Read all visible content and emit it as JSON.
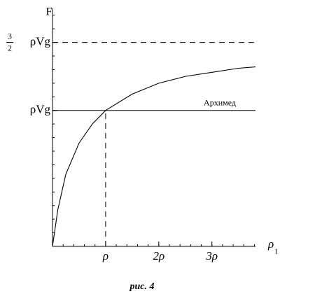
{
  "chart_data": {
    "type": "line",
    "ylabel": "F",
    "xlabel": {
      "text": "ρ",
      "subscript": "1"
    },
    "caption": "рис. 4",
    "x": [
      0,
      0.1,
      0.25,
      0.5,
      0.75,
      1,
      1.5,
      2,
      2.5,
      3,
      3.5,
      3.82
    ],
    "series": [
      {
        "color": "#000000",
        "values": [
          0,
          0.27,
          0.53,
          0.76,
          0.9,
          1,
          1.12,
          1.2,
          1.25,
          1.28,
          1.31,
          1.32
        ]
      }
    ],
    "xlim": [
      0,
      3.82
    ],
    "ylim": [
      0,
      1.75
    ],
    "xticks": [
      {
        "value": 1,
        "label": "ρ"
      },
      {
        "value": 2,
        "label": "2ρ"
      },
      {
        "value": 3,
        "label": "3ρ"
      }
    ],
    "yticks": [
      {
        "value": 1,
        "label": "ρVg"
      },
      {
        "value": 1.5,
        "label": "ρVg",
        "fraction": [
          "3",
          "2"
        ]
      }
    ],
    "xminor": 0.2,
    "yminor": 0.1,
    "hlines": [
      {
        "y": 1.5,
        "dashed": true
      },
      {
        "y": 1,
        "dashed": false,
        "label": "Архимед"
      }
    ],
    "vlines": [
      {
        "x": 1,
        "y": 1,
        "dashed": true
      }
    ]
  }
}
